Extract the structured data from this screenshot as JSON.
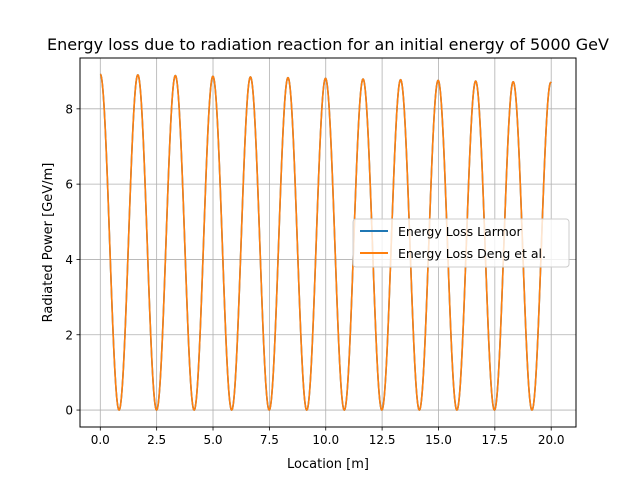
{
  "chart_data": {
    "type": "line",
    "title": "Energy loss due to radiation reaction for an initial energy of 5000 GeV",
    "xlabel": "Location [m]",
    "ylabel": "Radiated Power [GeV/m]",
    "xlim": [
      -0.9,
      21.1
    ],
    "ylim": [
      -0.45,
      9.35
    ],
    "xticks": [
      0.0,
      2.5,
      5.0,
      7.5,
      10.0,
      12.5,
      15.0,
      17.5,
      20.0
    ],
    "xtick_labels": [
      "0.0",
      "2.5",
      "5.0",
      "7.5",
      "10.0",
      "12.5",
      "15.0",
      "17.5",
      "20.0"
    ],
    "yticks": [
      0,
      2,
      4,
      6,
      8
    ],
    "ytick_labels": [
      "0",
      "2",
      "4",
      "6",
      "8"
    ],
    "grid": true,
    "legend_position": "center-right",
    "series_shape": {
      "form": "peak * cos^2(pi * x / period)",
      "x_range": [
        0,
        20
      ],
      "period": 1.665,
      "peak_start": 8.92,
      "peak_end": 8.7
    },
    "series": [
      {
        "name": "Energy Loss Larmor",
        "color": "#1f77b4"
      },
      {
        "name": "Energy Loss Deng et al.",
        "color": "#ff7f0e"
      }
    ]
  }
}
